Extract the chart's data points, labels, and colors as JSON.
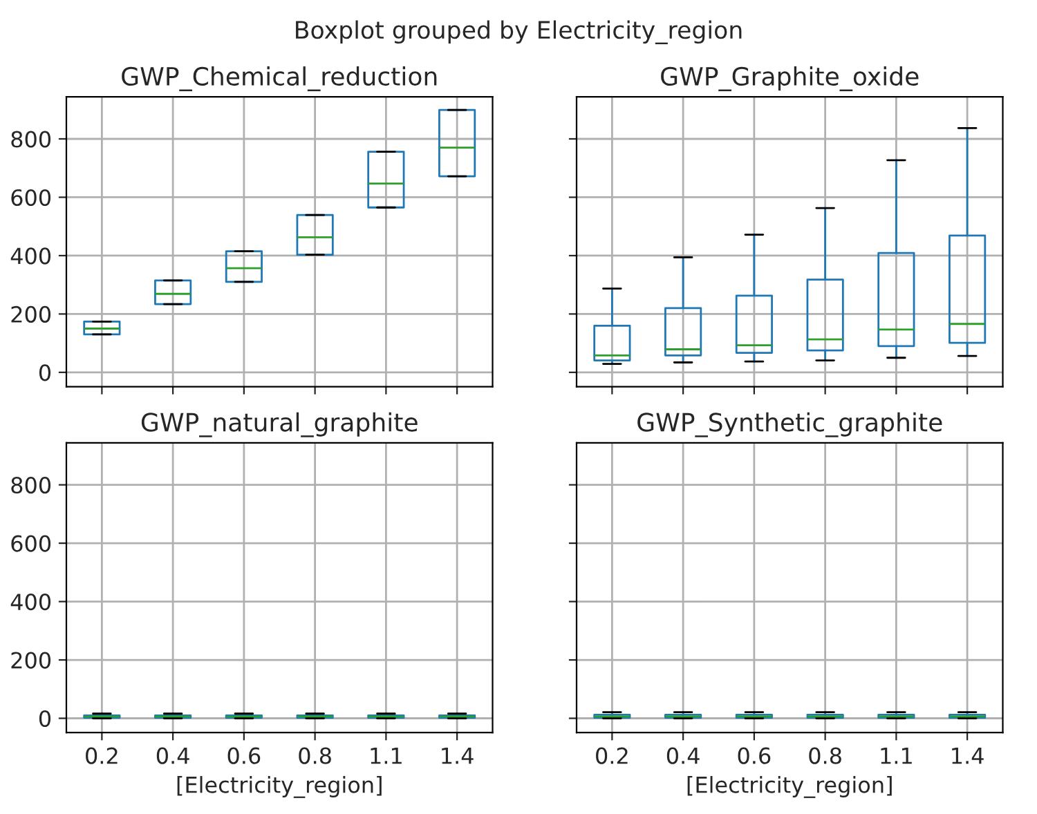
{
  "chart_data": [
    {
      "type": "box",
      "title": "GWP_Chemical_reduction",
      "annotations": [
        "Boxplot grouped by Electricity_region"
      ],
      "categories": [
        "0.2",
        "0.4",
        "0.6",
        "0.8",
        "1.1",
        "1.4"
      ],
      "ylim": [
        -49,
        944
      ],
      "yticks": [
        0,
        200,
        400,
        600,
        800
      ],
      "grid": true,
      "tick_labels": "y",
      "series": [
        {
          "color": "#1f77b4",
          "boxes": [
            {
              "low": 130,
              "q1": 130,
              "median": 150,
              "q3": 174,
              "high": 174
            },
            {
              "low": 234,
              "q1": 234,
              "median": 269,
              "q3": 315,
              "high": 315
            },
            {
              "low": 310,
              "q1": 310,
              "median": 357,
              "q3": 415,
              "high": 415
            },
            {
              "low": 403,
              "q1": 403,
              "median": 463,
              "q3": 539,
              "high": 539
            },
            {
              "low": 565,
              "q1": 565,
              "median": 647,
              "q3": 756,
              "high": 756
            },
            {
              "low": 672,
              "q1": 672,
              "median": 770,
              "q3": 899,
              "high": 899
            }
          ]
        }
      ]
    },
    {
      "type": "box",
      "title": "GWP_Graphite_oxide",
      "categories": [
        "0.2",
        "0.4",
        "0.6",
        "0.8",
        "1.1",
        "1.4"
      ],
      "ylim": [
        -49,
        944
      ],
      "yticks": [
        0,
        200,
        400,
        600,
        800
      ],
      "grid": true,
      "tick_labels": false,
      "series": [
        {
          "color": "#1f77b4",
          "boxes": [
            {
              "low": 29,
              "q1": 41,
              "median": 58,
              "q3": 160,
              "high": 287
            },
            {
              "low": 34,
              "q1": 58,
              "median": 79,
              "q3": 220,
              "high": 394
            },
            {
              "low": 37,
              "q1": 67,
              "median": 93,
              "q3": 263,
              "high": 472
            },
            {
              "low": 41,
              "q1": 75,
              "median": 113,
              "q3": 318,
              "high": 563
            },
            {
              "low": 50,
              "q1": 90,
              "median": 147,
              "q3": 409,
              "high": 727
            },
            {
              "low": 56,
              "q1": 101,
              "median": 166,
              "q3": 469,
              "high": 837
            }
          ]
        }
      ]
    },
    {
      "type": "box",
      "title": "GWP_natural_graphite",
      "xlabel": "[Electricity_region]",
      "categories": [
        "0.2",
        "0.4",
        "0.6",
        "0.8",
        "1.1",
        "1.4"
      ],
      "ylim": [
        -49,
        944
      ],
      "yticks": [
        0,
        200,
        400,
        600,
        800
      ],
      "grid": true,
      "series": [
        {
          "color": "#1f77b4",
          "boxes": [
            {
              "low": 0,
              "q1": 2,
              "median": 6,
              "q3": 10,
              "high": 16
            },
            {
              "low": 0,
              "q1": 2,
              "median": 6,
              "q3": 10,
              "high": 16
            },
            {
              "low": 0,
              "q1": 2,
              "median": 6,
              "q3": 10,
              "high": 16
            },
            {
              "low": 0,
              "q1": 2,
              "median": 6,
              "q3": 10,
              "high": 16
            },
            {
              "low": 0,
              "q1": 2,
              "median": 6,
              "q3": 10,
              "high": 16
            },
            {
              "low": 0,
              "q1": 2,
              "median": 6,
              "q3": 10,
              "high": 16
            }
          ]
        }
      ]
    },
    {
      "type": "box",
      "title": "GWP_Synthetic_graphite",
      "xlabel": "[Electricity_region]",
      "categories": [
        "0.2",
        "0.4",
        "0.6",
        "0.8",
        "1.1",
        "1.4"
      ],
      "ylim": [
        -49,
        944
      ],
      "yticks": [
        0,
        200,
        400,
        600,
        800
      ],
      "grid": true,
      "tick_labels": "x",
      "series": [
        {
          "color": "#1f77b4",
          "boxes": [
            {
              "low": 0,
              "q1": 2,
              "median": 6,
              "q3": 12,
              "high": 21
            },
            {
              "low": 0,
              "q1": 2,
              "median": 6,
              "q3": 12,
              "high": 21
            },
            {
              "low": 0,
              "q1": 2,
              "median": 6,
              "q3": 12,
              "high": 21
            },
            {
              "low": 0,
              "q1": 2,
              "median": 6,
              "q3": 12,
              "high": 21
            },
            {
              "low": 0,
              "q1": 2,
              "median": 6,
              "q3": 12,
              "high": 21
            },
            {
              "low": 0,
              "q1": 2,
              "median": 6,
              "q3": 12,
              "high": 21
            }
          ]
        }
      ]
    }
  ]
}
